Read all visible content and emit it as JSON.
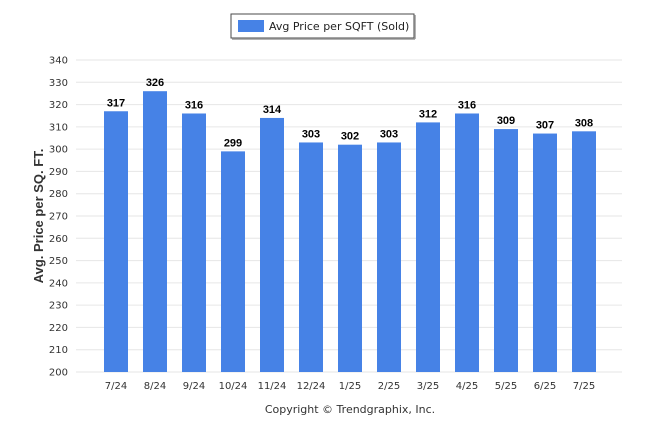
{
  "legend": {
    "label": "Avg Price per SQFT (Sold)",
    "position": "top-center"
  },
  "copyright": "Copyright © Trendgraphix, Inc.",
  "colors": {
    "bar": "#4682e6",
    "grid": "#e6e6e6"
  },
  "chart_data": {
    "type": "bar",
    "categories": [
      "7/24",
      "8/24",
      "9/24",
      "10/24",
      "11/24",
      "12/24",
      "1/25",
      "2/25",
      "3/25",
      "4/25",
      "5/25",
      "6/25",
      "7/25"
    ],
    "series": [
      {
        "name": "Avg Price per SQFT (Sold)",
        "values": [
          317,
          326,
          316,
          299,
          314,
          303,
          302,
          303,
          312,
          316,
          309,
          307,
          308
        ]
      }
    ],
    "ylabel": "Avg. Price per SQ. FT.",
    "xlabel": "",
    "ylim": [
      200,
      340
    ],
    "yticks": [
      200,
      210,
      220,
      230,
      240,
      250,
      260,
      270,
      280,
      290,
      300,
      310,
      320,
      330,
      340
    ],
    "grid": true,
    "data_labels": true
  }
}
